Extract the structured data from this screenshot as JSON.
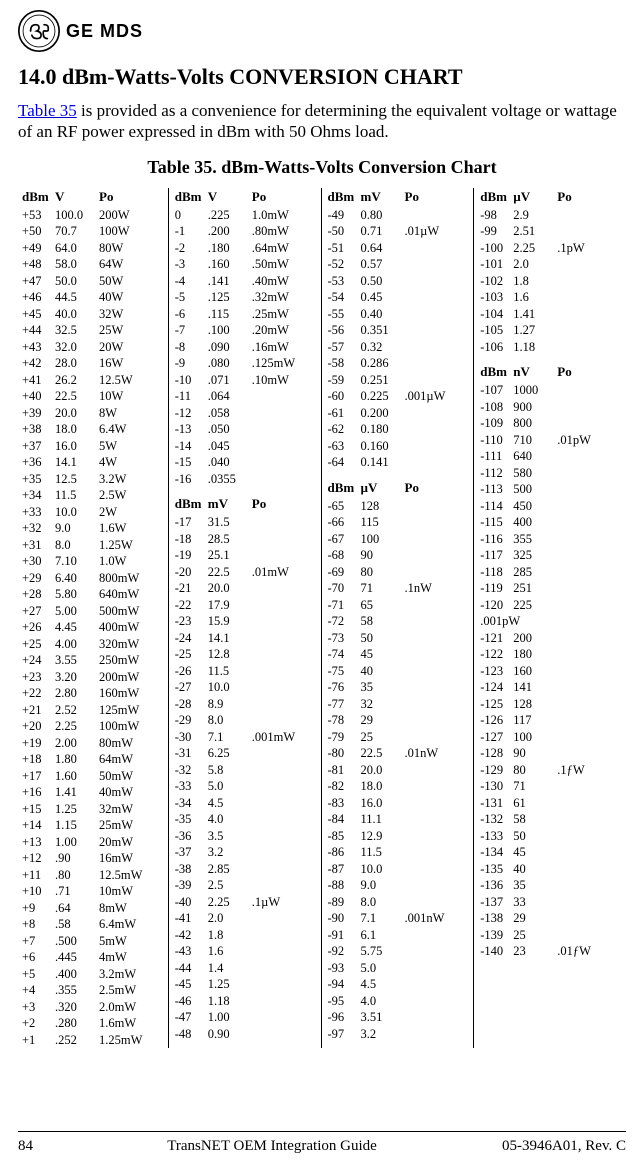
{
  "logo": {
    "mds": "GE MDS"
  },
  "heading": "14.0   dBm-Watts-Volts CONVERSION CHART",
  "intro_link": "Table 35",
  "intro_rest": " is provided as a convenience for determining the equivalent voltage or wattage of an RF power expressed in dBm with 50 Ohms load.",
  "table_title": "Table 35. dBm-Watts-Volts Conversion Chart",
  "hdrs": {
    "dBm": "dBm",
    "V": "V",
    "mV": "mV",
    "uV": "µV",
    "nV": "nV",
    "Po": "Po"
  },
  "col1": [
    [
      "+53",
      "100.0",
      "200W"
    ],
    [
      "+50",
      "70.7",
      "100W"
    ],
    [
      "+49",
      "64.0",
      "80W"
    ],
    [
      "+48",
      "58.0",
      "64W"
    ],
    [
      "+47",
      "50.0",
      "50W"
    ],
    [
      "+46",
      "44.5",
      "40W"
    ],
    [
      "+45",
      "40.0",
      "32W"
    ],
    [
      "+44",
      "32.5",
      "25W"
    ],
    [
      "+43",
      "32.0",
      "20W"
    ],
    [
      "+42",
      "28.0",
      "16W"
    ],
    [
      "+41",
      "26.2",
      "12.5W"
    ],
    [
      "+40",
      "22.5",
      "10W"
    ],
    [
      "+39",
      "20.0",
      "8W"
    ],
    [
      "+38",
      "18.0",
      "6.4W"
    ],
    [
      "+37",
      "16.0",
      "5W"
    ],
    [
      "+36",
      "14.1",
      "4W"
    ],
    [
      "+35",
      "12.5",
      "3.2W"
    ],
    [
      "+34",
      "11.5",
      "2.5W"
    ],
    [
      "+33",
      "10.0",
      "2W"
    ],
    [
      "+32",
      "9.0",
      "1.6W"
    ],
    [
      "+31",
      "8.0",
      "1.25W"
    ],
    [
      "+30",
      "7.10",
      "1.0W"
    ],
    [
      "+29",
      "6.40",
      "800mW"
    ],
    [
      "+28",
      "5.80",
      "640mW"
    ],
    [
      "+27",
      "5.00",
      "500mW"
    ],
    [
      "+26",
      "4.45",
      "400mW"
    ],
    [
      "+25",
      "4.00",
      "320mW"
    ],
    [
      "+24",
      "3.55",
      "250mW"
    ],
    [
      "+23",
      "3.20",
      "200mW"
    ],
    [
      "+22",
      "2.80",
      "160mW"
    ],
    [
      "+21",
      "2.52",
      "125mW"
    ],
    [
      "+20",
      "2.25",
      "100mW"
    ],
    [
      "+19",
      "2.00",
      "80mW"
    ],
    [
      "+18",
      "1.80",
      "64mW"
    ],
    [
      "+17",
      "1.60",
      "50mW"
    ],
    [
      "+16",
      "1.41",
      "40mW"
    ],
    [
      "+15",
      "1.25",
      "32mW"
    ],
    [
      "+14",
      "1.15",
      "25mW"
    ],
    [
      "+13",
      "1.00",
      "20mW"
    ],
    [
      "+12",
      ".90",
      "16mW"
    ],
    [
      "+11",
      ".80",
      "12.5mW"
    ],
    [
      "+10",
      ".71",
      "10mW"
    ],
    [
      "+9",
      ".64",
      "8mW"
    ],
    [
      "+8",
      ".58",
      "6.4mW"
    ],
    [
      "+7",
      ".500",
      "5mW"
    ],
    [
      "+6",
      ".445",
      "4mW"
    ],
    [
      "+5",
      ".400",
      "3.2mW"
    ],
    [
      "+4",
      ".355",
      "2.5mW"
    ],
    [
      "+3",
      ".320",
      "2.0mW"
    ],
    [
      "+2",
      ".280",
      "1.6mW"
    ],
    [
      "+1",
      ".252",
      "1.25mW"
    ]
  ],
  "col2a": [
    [
      "0",
      ".225",
      "1.0mW"
    ],
    [
      "-1",
      ".200",
      ".80mW"
    ],
    [
      "-2",
      ".180",
      ".64mW"
    ],
    [
      "-3",
      ".160",
      ".50mW"
    ],
    [
      "-4",
      ".141",
      ".40mW"
    ],
    [
      "-5",
      ".125",
      ".32mW"
    ],
    [
      "-6",
      ".115",
      ".25mW"
    ],
    [
      "-7",
      ".100",
      ".20mW"
    ],
    [
      "-8",
      ".090",
      ".16mW"
    ],
    [
      "-9",
      ".080",
      ".125mW"
    ],
    [
      "-10",
      ".071",
      ".10mW"
    ],
    [
      "-11",
      ".064",
      ""
    ],
    [
      "-12",
      ".058",
      ""
    ],
    [
      "-13",
      ".050",
      ""
    ],
    [
      "-14",
      ".045",
      ""
    ],
    [
      "-15",
      ".040",
      ""
    ],
    [
      "-16",
      ".0355",
      ""
    ]
  ],
  "col2b": [
    [
      "-17",
      "31.5",
      ""
    ],
    [
      "-18",
      "28.5",
      ""
    ],
    [
      "-19",
      "25.1",
      ""
    ],
    [
      "-20",
      "22.5",
      ".01mW"
    ],
    [
      "-21",
      "20.0",
      ""
    ],
    [
      "-22",
      "17.9",
      ""
    ],
    [
      "-23",
      "15.9",
      ""
    ],
    [
      "-24",
      "14.1",
      ""
    ],
    [
      "-25",
      "12.8",
      ""
    ],
    [
      "-26",
      "11.5",
      ""
    ],
    [
      "-27",
      "10.0",
      ""
    ],
    [
      "-28",
      "8.9",
      ""
    ],
    [
      "-29",
      "8.0",
      ""
    ],
    [
      "-30",
      "7.1",
      ".001mW"
    ],
    [
      "-31",
      "6.25",
      ""
    ],
    [
      "-32",
      "5.8",
      ""
    ],
    [
      "-33",
      "5.0",
      ""
    ],
    [
      "-34",
      "4.5",
      ""
    ],
    [
      "-35",
      "4.0",
      ""
    ],
    [
      "-36",
      "3.5",
      ""
    ],
    [
      "-37",
      "3.2",
      ""
    ],
    [
      "-38",
      "2.85",
      ""
    ],
    [
      "-39",
      "2.5",
      ""
    ],
    [
      "-40",
      "2.25",
      ".1µW"
    ],
    [
      "-41",
      "2.0",
      ""
    ],
    [
      "-42",
      "1.8",
      ""
    ],
    [
      "-43",
      "1.6",
      ""
    ],
    [
      "-44",
      "1.4",
      ""
    ],
    [
      "-45",
      "1.25",
      ""
    ],
    [
      "-46",
      "1.18",
      ""
    ],
    [
      "-47",
      "1.00",
      ""
    ],
    [
      "-48",
      "0.90",
      ""
    ]
  ],
  "col3a": [
    [
      "-49",
      "0.80",
      ""
    ],
    [
      "-50",
      "0.71",
      ".01µW"
    ],
    [
      "-51",
      "0.64",
      ""
    ],
    [
      "-52",
      "0.57",
      ""
    ],
    [
      "-53",
      "0.50",
      ""
    ],
    [
      "-54",
      "0.45",
      ""
    ],
    [
      "-55",
      "0.40",
      ""
    ],
    [
      "-56",
      "0.351",
      ""
    ],
    [
      "-57",
      "0.32",
      ""
    ],
    [
      "-58",
      "0.286",
      ""
    ],
    [
      "-59",
      "0.251",
      ""
    ],
    [
      "-60",
      "0.225",
      ".001µW"
    ],
    [
      "-61",
      "0.200",
      ""
    ],
    [
      "-62",
      "0.180",
      ""
    ],
    [
      "-63",
      "0.160",
      ""
    ],
    [
      "-64",
      "0.141",
      ""
    ]
  ],
  "col3b": [
    [
      "-65",
      "128",
      ""
    ],
    [
      "-66",
      "115",
      ""
    ],
    [
      "-67",
      "100",
      ""
    ],
    [
      "-68",
      "90",
      ""
    ],
    [
      "-69",
      "80",
      ""
    ],
    [
      "-70",
      "71",
      ".1nW"
    ],
    [
      "-71",
      "65",
      ""
    ],
    [
      "-72",
      "58",
      ""
    ],
    [
      "-73",
      "50",
      ""
    ],
    [
      "-74",
      "45",
      ""
    ],
    [
      "-75",
      "40",
      ""
    ],
    [
      "-76",
      "35",
      ""
    ],
    [
      "-77",
      "32",
      ""
    ],
    [
      "-78",
      "29",
      ""
    ],
    [
      "-79",
      "25",
      ""
    ],
    [
      "-80",
      "22.5",
      ".01nW"
    ],
    [
      "-81",
      "20.0",
      ""
    ],
    [
      "-82",
      "18.0",
      ""
    ],
    [
      "-83",
      "16.0",
      ""
    ],
    [
      "-84",
      "11.1",
      ""
    ],
    [
      "-85",
      "12.9",
      ""
    ],
    [
      "-86",
      "11.5",
      ""
    ],
    [
      "-87",
      "10.0",
      ""
    ],
    [
      "-88",
      "9.0",
      ""
    ],
    [
      "-89",
      "8.0",
      ""
    ],
    [
      "-90",
      "7.1",
      ".001nW"
    ],
    [
      "-91",
      "6.1",
      ""
    ],
    [
      "-92",
      "5.75",
      ""
    ],
    [
      "-93",
      "5.0",
      ""
    ],
    [
      "-94",
      "4.5",
      ""
    ],
    [
      "-95",
      "4.0",
      ""
    ],
    [
      "-96",
      "3.51",
      ""
    ],
    [
      "-97",
      "3.2",
      ""
    ]
  ],
  "col4a": [
    [
      "-98",
      "2.9",
      ""
    ],
    [
      "-99",
      "2.51",
      ""
    ],
    [
      "-100",
      "2.25",
      ".1pW"
    ],
    [
      "-101",
      "2.0",
      ""
    ],
    [
      "-102",
      "1.8",
      ""
    ],
    [
      "-103",
      "1.6",
      ""
    ],
    [
      "-104",
      "1.41",
      ""
    ],
    [
      "-105",
      "1.27",
      ""
    ],
    [
      "-106",
      "1.18",
      ""
    ]
  ],
  "col4b": [
    [
      "-107",
      "1000",
      ""
    ],
    [
      "-108",
      "900",
      ""
    ],
    [
      "-109",
      "800",
      ""
    ],
    [
      "-110",
      "710",
      ".01pW"
    ],
    [
      "-111",
      "640",
      ""
    ],
    [
      "-112",
      "580",
      ""
    ],
    [
      "-113",
      "500",
      ""
    ],
    [
      "-114",
      "450",
      ""
    ],
    [
      "-115",
      "400",
      ""
    ],
    [
      "-116",
      "355",
      ""
    ],
    [
      "-117",
      "325",
      ""
    ],
    [
      "-118",
      "285",
      ""
    ],
    [
      "-119",
      "251",
      ""
    ],
    [
      "-120",
      "225",
      ""
    ],
    [
      ".001pW",
      "",
      ""
    ],
    [
      "-121",
      "200",
      ""
    ],
    [
      "-122",
      "180",
      ""
    ],
    [
      "-123",
      "160",
      ""
    ],
    [
      "-124",
      "141",
      ""
    ],
    [
      "-125",
      "128",
      ""
    ],
    [
      "-126",
      "117",
      ""
    ],
    [
      "-127",
      "100",
      ""
    ],
    [
      "-128",
      "90",
      ""
    ],
    [
      "-129",
      "80",
      ".1ƒW"
    ],
    [
      "-130",
      "71",
      ""
    ],
    [
      "-131",
      "61",
      ""
    ],
    [
      "-132",
      "58",
      ""
    ],
    [
      "-133",
      "50",
      ""
    ],
    [
      "-134",
      "45",
      ""
    ],
    [
      "-135",
      "40",
      ""
    ],
    [
      "-136",
      "35",
      ""
    ],
    [
      "-137",
      "33",
      ""
    ],
    [
      "-138",
      "29",
      ""
    ],
    [
      "-139",
      "25",
      ""
    ],
    [
      "-140",
      "23",
      ".01ƒW"
    ]
  ],
  "footer": {
    "page": "84",
    "center": "TransNET OEM Integration Guide",
    "right": "05-3946A01, Rev. C"
  }
}
